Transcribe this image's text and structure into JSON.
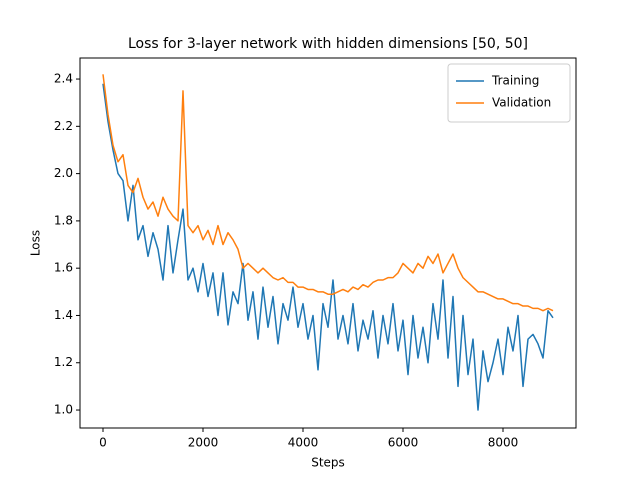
{
  "chart_data": {
    "type": "line",
    "title": "Loss for 3-layer network with hidden dimensions [50, 50]",
    "x_label": "Steps",
    "y_label": "Loss",
    "x": [
      0,
      100,
      200,
      300,
      400,
      500,
      600,
      700,
      800,
      900,
      1000,
      1100,
      1200,
      1300,
      1400,
      1500,
      1600,
      1700,
      1800,
      1900,
      2000,
      2100,
      2200,
      2300,
      2400,
      2500,
      2600,
      2700,
      2800,
      2900,
      3000,
      3100,
      3200,
      3300,
      3400,
      3500,
      3600,
      3700,
      3800,
      3900,
      4000,
      4100,
      4200,
      4300,
      4400,
      4500,
      4600,
      4700,
      4800,
      4900,
      5000,
      5100,
      5200,
      5300,
      5400,
      5500,
      5600,
      5700,
      5800,
      5900,
      6000,
      6100,
      6200,
      6300,
      6400,
      6500,
      6600,
      6700,
      6800,
      6900,
      7000,
      7100,
      7200,
      7300,
      7400,
      7500,
      7600,
      7700,
      7800,
      7900,
      8000,
      8100,
      8200,
      8300,
      8400,
      8500,
      8600,
      8700,
      8800,
      8900,
      9000
    ],
    "series": [
      {
        "name": "Training",
        "color": "#1f77b4",
        "values": [
          2.38,
          2.22,
          2.1,
          2.0,
          1.97,
          1.8,
          1.95,
          1.72,
          1.78,
          1.65,
          1.75,
          1.68,
          1.55,
          1.78,
          1.58,
          1.72,
          1.85,
          1.55,
          1.6,
          1.5,
          1.62,
          1.48,
          1.58,
          1.4,
          1.58,
          1.36,
          1.5,
          1.45,
          1.62,
          1.38,
          1.5,
          1.3,
          1.52,
          1.35,
          1.48,
          1.28,
          1.45,
          1.38,
          1.52,
          1.35,
          1.45,
          1.3,
          1.4,
          1.17,
          1.45,
          1.35,
          1.55,
          1.3,
          1.4,
          1.28,
          1.45,
          1.25,
          1.38,
          1.3,
          1.42,
          1.22,
          1.4,
          1.28,
          1.45,
          1.25,
          1.38,
          1.15,
          1.4,
          1.22,
          1.35,
          1.2,
          1.45,
          1.3,
          1.55,
          1.22,
          1.48,
          1.1,
          1.4,
          1.15,
          1.3,
          1.0,
          1.25,
          1.12,
          1.2,
          1.3,
          1.15,
          1.35,
          1.25,
          1.4,
          1.1,
          1.3,
          1.32,
          1.28,
          1.22,
          1.42,
          1.39
        ]
      },
      {
        "name": "Validation",
        "color": "#ff7f0e",
        "values": [
          2.42,
          2.25,
          2.12,
          2.05,
          2.08,
          1.95,
          1.92,
          1.98,
          1.9,
          1.85,
          1.88,
          1.82,
          1.9,
          1.85,
          1.82,
          1.8,
          2.35,
          1.78,
          1.75,
          1.78,
          1.72,
          1.76,
          1.7,
          1.78,
          1.7,
          1.75,
          1.72,
          1.68,
          1.6,
          1.62,
          1.6,
          1.58,
          1.6,
          1.58,
          1.56,
          1.55,
          1.56,
          1.54,
          1.54,
          1.52,
          1.52,
          1.51,
          1.51,
          1.5,
          1.5,
          1.49,
          1.49,
          1.5,
          1.51,
          1.5,
          1.52,
          1.51,
          1.53,
          1.52,
          1.54,
          1.55,
          1.55,
          1.56,
          1.56,
          1.58,
          1.62,
          1.6,
          1.58,
          1.62,
          1.6,
          1.65,
          1.62,
          1.66,
          1.58,
          1.62,
          1.66,
          1.6,
          1.56,
          1.54,
          1.52,
          1.5,
          1.5,
          1.49,
          1.48,
          1.47,
          1.47,
          1.46,
          1.45,
          1.45,
          1.44,
          1.44,
          1.43,
          1.43,
          1.42,
          1.43,
          1.42
        ]
      }
    ],
    "xlim": [
      -460,
      9460
    ],
    "xticks": [
      0,
      2000,
      4000,
      6000,
      8000
    ],
    "ylim": [
      0.924,
      2.489
    ],
    "yticks": [
      {
        "value": 1,
        "label": "1.0"
      },
      1.2,
      1.4,
      1.6,
      1.8,
      {
        "value": 2,
        "label": "2.0"
      },
      2.2,
      2.4
    ],
    "legend": "upper right",
    "grid": false
  }
}
